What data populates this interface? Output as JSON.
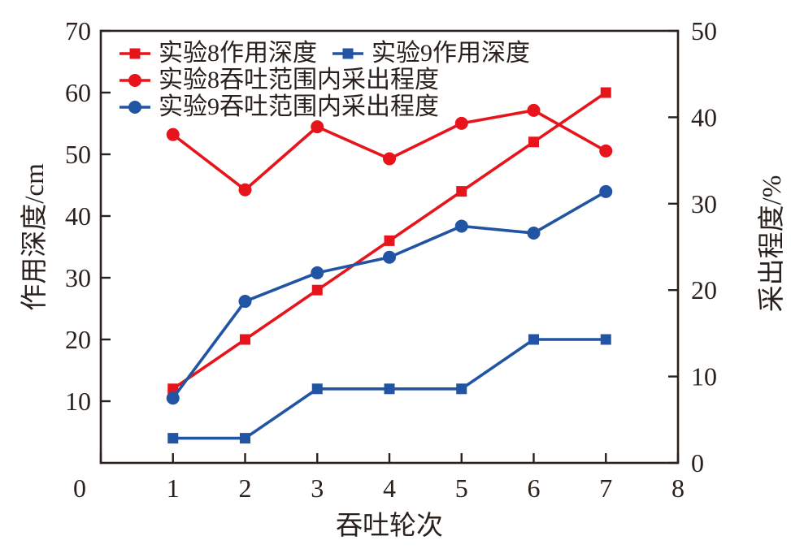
{
  "chart_data": {
    "type": "line",
    "title": "",
    "xlabel": "吞吐轮次",
    "ylabel_left": "作用深度/cm",
    "ylabel_right": "采出程度/%",
    "x": [
      1,
      2,
      3,
      4,
      5,
      6,
      7
    ],
    "xlim": [
      0,
      8
    ],
    "ylim_left": [
      0,
      70
    ],
    "ylim_right": [
      0,
      50
    ],
    "x_ticks": [
      0,
      1,
      2,
      3,
      4,
      5,
      6,
      7,
      8
    ],
    "y_ticks_left": [
      10,
      20,
      30,
      40,
      50,
      60,
      70
    ],
    "y_ticks_right": [
      0,
      10,
      20,
      30,
      40,
      50
    ],
    "grid": false,
    "legend_position": "upper-left-inside",
    "colors": {
      "red": "#e8141b",
      "blue": "#2254a4",
      "axis": "#2a211c",
      "background": "#ffffff"
    },
    "series": [
      {
        "name": "实验8作用深度",
        "axis": "left",
        "marker": "square",
        "color": "#e8141b",
        "values": [
          12,
          20,
          28,
          36,
          44,
          52,
          60
        ]
      },
      {
        "name": "实验9作用深度",
        "axis": "left",
        "marker": "square",
        "color": "#2254a4",
        "values": [
          4,
          4,
          12,
          12,
          12,
          20,
          20
        ]
      },
      {
        "name": "实验8吞吐范围内采出程度",
        "axis": "right",
        "marker": "circle",
        "color": "#e8141b",
        "values": [
          38.0,
          31.6,
          38.9,
          35.2,
          39.3,
          40.8,
          36.1
        ]
      },
      {
        "name": "实验9吞吐范围内采出程度",
        "axis": "right",
        "marker": "circle",
        "color": "#2254a4",
        "values": [
          7.5,
          18.7,
          22.0,
          23.8,
          27.4,
          26.6,
          31.4
        ]
      }
    ]
  }
}
